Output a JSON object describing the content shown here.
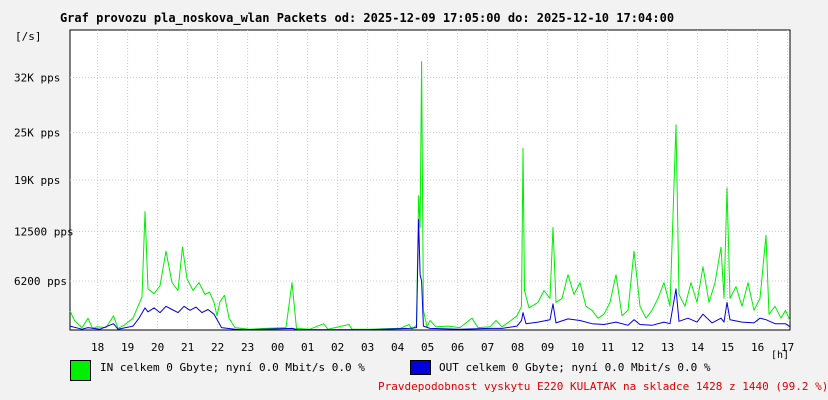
{
  "chart_data": {
    "type": "line",
    "title": "Graf provozu pla_noskova_wlan Packets od: 2025-12-09 17:05:00 do: 2025-12-10 17:04:00",
    "ylabel": "[/s]",
    "xlabel": "[h]",
    "ylim": [
      0,
      38000
    ],
    "yticks": [
      {
        "value": 6200,
        "label": "6200 pps"
      },
      {
        "value": 12500,
        "label": "12500 pps"
      },
      {
        "value": 19000,
        "label": "19K pps"
      },
      {
        "value": 25000,
        "label": "25K pps"
      },
      {
        "value": 32000,
        "label": "32K pps"
      }
    ],
    "xticks": [
      {
        "t": 0.92,
        "label": "18"
      },
      {
        "t": 1.92,
        "label": "19"
      },
      {
        "t": 2.92,
        "label": "20"
      },
      {
        "t": 3.92,
        "label": "21"
      },
      {
        "t": 4.92,
        "label": "22"
      },
      {
        "t": 5.92,
        "label": "23"
      },
      {
        "t": 6.92,
        "label": "00"
      },
      {
        "t": 7.92,
        "label": "01"
      },
      {
        "t": 8.92,
        "label": "02"
      },
      {
        "t": 9.92,
        "label": "03"
      },
      {
        "t": 10.92,
        "label": "04"
      },
      {
        "t": 11.92,
        "label": "05"
      },
      {
        "t": 12.92,
        "label": "06"
      },
      {
        "t": 13.92,
        "label": "07"
      },
      {
        "t": 14.92,
        "label": "08"
      },
      {
        "t": 15.92,
        "label": "09"
      },
      {
        "t": 16.92,
        "label": "10"
      },
      {
        "t": 17.92,
        "label": "11"
      },
      {
        "t": 18.92,
        "label": "12"
      },
      {
        "t": 19.92,
        "label": "13"
      },
      {
        "t": 20.92,
        "label": "14"
      },
      {
        "t": 21.92,
        "label": "15"
      },
      {
        "t": 22.92,
        "label": "16"
      },
      {
        "t": 23.92,
        "label": "17"
      }
    ],
    "grid": true,
    "series": [
      {
        "name": "IN",
        "color": "#00ee00",
        "points": [
          [
            0.0,
            2400
          ],
          [
            0.15,
            1200
          ],
          [
            0.4,
            300
          ],
          [
            0.6,
            1500
          ],
          [
            0.75,
            200
          ],
          [
            0.9,
            400
          ],
          [
            1.2,
            300
          ],
          [
            1.45,
            1800
          ],
          [
            1.6,
            200
          ],
          [
            1.8,
            600
          ],
          [
            2.1,
            1500
          ],
          [
            2.2,
            2400
          ],
          [
            2.4,
            4200
          ],
          [
            2.5,
            15000
          ],
          [
            2.6,
            5200
          ],
          [
            2.8,
            4600
          ],
          [
            3.0,
            5600
          ],
          [
            3.2,
            10000
          ],
          [
            3.4,
            6000
          ],
          [
            3.6,
            5000
          ],
          [
            3.75,
            10500
          ],
          [
            3.9,
            6500
          ],
          [
            4.1,
            5000
          ],
          [
            4.3,
            6000
          ],
          [
            4.5,
            4500
          ],
          [
            4.65,
            4800
          ],
          [
            4.8,
            3500
          ],
          [
            4.9,
            1800
          ],
          [
            5.0,
            3600
          ],
          [
            5.15,
            4400
          ],
          [
            5.3,
            1500
          ],
          [
            5.5,
            300
          ],
          [
            6.0,
            100
          ],
          [
            6.5,
            200
          ],
          [
            7.2,
            300
          ],
          [
            7.4,
            6000
          ],
          [
            7.55,
            200
          ],
          [
            8.0,
            100
          ],
          [
            8.45,
            800
          ],
          [
            8.6,
            100
          ],
          [
            9.3,
            700
          ],
          [
            9.4,
            100
          ],
          [
            10.0,
            100
          ],
          [
            11.0,
            200
          ],
          [
            11.3,
            700
          ],
          [
            11.4,
            100
          ],
          [
            11.55,
            600
          ],
          [
            11.62,
            17000
          ],
          [
            11.67,
            13000
          ],
          [
            11.72,
            34000
          ],
          [
            11.78,
            2500
          ],
          [
            11.9,
            400
          ],
          [
            12.0,
            1200
          ],
          [
            12.2,
            400
          ],
          [
            12.6,
            500
          ],
          [
            13.0,
            300
          ],
          [
            13.4,
            1500
          ],
          [
            13.6,
            300
          ],
          [
            14.0,
            400
          ],
          [
            14.2,
            1200
          ],
          [
            14.4,
            400
          ],
          [
            14.7,
            1200
          ],
          [
            14.9,
            1800
          ],
          [
            15.05,
            3000
          ],
          [
            15.1,
            23000
          ],
          [
            15.15,
            5000
          ],
          [
            15.3,
            2800
          ],
          [
            15.6,
            3500
          ],
          [
            15.8,
            5000
          ],
          [
            16.0,
            4000
          ],
          [
            16.1,
            13000
          ],
          [
            16.2,
            3500
          ],
          [
            16.4,
            4000
          ],
          [
            16.6,
            7000
          ],
          [
            16.8,
            4500
          ],
          [
            17.0,
            6000
          ],
          [
            17.2,
            3000
          ],
          [
            17.4,
            2500
          ],
          [
            17.6,
            1500
          ],
          [
            17.8,
            2000
          ],
          [
            18.0,
            3500
          ],
          [
            18.2,
            7000
          ],
          [
            18.4,
            1800
          ],
          [
            18.6,
            2500
          ],
          [
            18.8,
            10000
          ],
          [
            19.0,
            3000
          ],
          [
            19.2,
            1500
          ],
          [
            19.4,
            2500
          ],
          [
            19.6,
            4000
          ],
          [
            19.8,
            6000
          ],
          [
            20.0,
            3000
          ],
          [
            20.2,
            26000
          ],
          [
            20.3,
            4500
          ],
          [
            20.5,
            3000
          ],
          [
            20.7,
            6000
          ],
          [
            20.9,
            3500
          ],
          [
            21.1,
            8000
          ],
          [
            21.3,
            3500
          ],
          [
            21.5,
            6000
          ],
          [
            21.7,
            10500
          ],
          [
            21.8,
            4000
          ],
          [
            21.9,
            18000
          ],
          [
            22.0,
            4000
          ],
          [
            22.2,
            5500
          ],
          [
            22.4,
            3000
          ],
          [
            22.6,
            6000
          ],
          [
            22.8,
            2500
          ],
          [
            23.0,
            4000
          ],
          [
            23.2,
            12000
          ],
          [
            23.3,
            2000
          ],
          [
            23.5,
            3000
          ],
          [
            23.7,
            1500
          ],
          [
            23.85,
            2500
          ],
          [
            24.0,
            1200
          ]
        ]
      },
      {
        "name": "OUT",
        "color": "#0000dd",
        "points": [
          [
            0.0,
            500
          ],
          [
            0.4,
            100
          ],
          [
            0.6,
            300
          ],
          [
            1.0,
            100
          ],
          [
            1.45,
            800
          ],
          [
            1.6,
            100
          ],
          [
            2.1,
            500
          ],
          [
            2.3,
            1500
          ],
          [
            2.5,
            2800
          ],
          [
            2.6,
            2300
          ],
          [
            2.8,
            2800
          ],
          [
            3.0,
            2200
          ],
          [
            3.2,
            3000
          ],
          [
            3.4,
            2600
          ],
          [
            3.6,
            2200
          ],
          [
            3.8,
            3000
          ],
          [
            4.0,
            2500
          ],
          [
            4.2,
            2900
          ],
          [
            4.4,
            2200
          ],
          [
            4.6,
            2600
          ],
          [
            4.8,
            2000
          ],
          [
            4.95,
            1000
          ],
          [
            5.05,
            300
          ],
          [
            5.5,
            100
          ],
          [
            6.0,
            50
          ],
          [
            7.4,
            200
          ],
          [
            7.6,
            50
          ],
          [
            10.0,
            50
          ],
          [
            11.3,
            200
          ],
          [
            11.55,
            300
          ],
          [
            11.62,
            14000
          ],
          [
            11.67,
            7000
          ],
          [
            11.72,
            6200
          ],
          [
            11.78,
            500
          ],
          [
            12.0,
            200
          ],
          [
            13.0,
            100
          ],
          [
            14.0,
            200
          ],
          [
            14.4,
            200
          ],
          [
            14.9,
            500
          ],
          [
            15.05,
            1200
          ],
          [
            15.1,
            2200
          ],
          [
            15.2,
            800
          ],
          [
            15.6,
            1000
          ],
          [
            16.0,
            1300
          ],
          [
            16.1,
            3300
          ],
          [
            16.2,
            900
          ],
          [
            16.6,
            1400
          ],
          [
            17.0,
            1200
          ],
          [
            17.4,
            800
          ],
          [
            17.8,
            700
          ],
          [
            18.2,
            1000
          ],
          [
            18.6,
            600
          ],
          [
            18.8,
            1300
          ],
          [
            19.0,
            700
          ],
          [
            19.4,
            600
          ],
          [
            19.8,
            1000
          ],
          [
            20.0,
            800
          ],
          [
            20.2,
            5200
          ],
          [
            20.3,
            1100
          ],
          [
            20.6,
            1500
          ],
          [
            20.9,
            1000
          ],
          [
            21.1,
            2000
          ],
          [
            21.4,
            900
          ],
          [
            21.7,
            1500
          ],
          [
            21.8,
            1000
          ],
          [
            21.9,
            3500
          ],
          [
            22.0,
            1300
          ],
          [
            22.4,
            1000
          ],
          [
            22.8,
            900
          ],
          [
            23.0,
            1500
          ],
          [
            23.2,
            1300
          ],
          [
            23.5,
            800
          ],
          [
            23.85,
            800
          ],
          [
            24.0,
            400
          ]
        ]
      }
    ]
  },
  "legend": {
    "in_text": "IN celkem 0 Gbyte; nyní   0.0 Mbit/s 0.0 %",
    "out_text": "OUT celkem 0 Gbyte; nyní   0.0 Mbit/s 0.0 %",
    "in_color": "#00ee00",
    "out_color": "#0000dd"
  },
  "footnote": "Pravdepodobnost vyskytu E220 KULATAK na skladce 1428 z 1440 (99.2 %)"
}
